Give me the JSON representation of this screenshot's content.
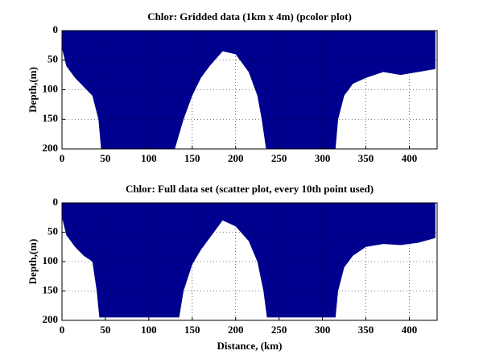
{
  "chart_data": [
    {
      "type": "area",
      "title": "Chlor: Gridded data (1km x 4m) (pcolor plot)",
      "y_label": "Depth,(m)",
      "x": [
        0,
        5,
        15,
        25,
        35,
        42,
        45,
        130,
        140,
        150,
        160,
        170,
        185,
        200,
        215,
        225,
        230,
        235,
        315,
        318,
        325,
        335,
        350,
        370,
        390,
        410,
        430
      ],
      "values": [
        30,
        60,
        80,
        95,
        110,
        150,
        200,
        200,
        150,
        110,
        80,
        60,
        35,
        40,
        70,
        110,
        150,
        200,
        200,
        150,
        110,
        90,
        80,
        70,
        75,
        70,
        65
      ],
      "color": "#00008f",
      "xlim": [
        0,
        432
      ],
      "ylim": [
        0,
        200
      ],
      "y_reversed": true,
      "xticks": [
        0,
        50,
        100,
        150,
        200,
        250,
        300,
        350,
        400
      ],
      "yticks": [
        0,
        50,
        100,
        150,
        200
      ],
      "grid": true
    },
    {
      "type": "area",
      "title": "Chlor: Full data set (scatter plot, every 10th point used)",
      "y_label": "Depth,(m)",
      "x_label": "Distance, (km)",
      "x": [
        0,
        5,
        15,
        25,
        35,
        40,
        43,
        135,
        140,
        150,
        160,
        170,
        185,
        200,
        215,
        225,
        232,
        236,
        315,
        318,
        325,
        335,
        350,
        370,
        390,
        410,
        430
      ],
      "values": [
        25,
        55,
        75,
        90,
        100,
        150,
        195,
        195,
        150,
        105,
        80,
        60,
        30,
        40,
        65,
        100,
        150,
        195,
        195,
        150,
        110,
        90,
        75,
        70,
        72,
        68,
        60
      ],
      "color": "#00008f",
      "xlim": [
        0,
        432
      ],
      "ylim": [
        0,
        200
      ],
      "y_reversed": true,
      "xticks": [
        0,
        50,
        100,
        150,
        200,
        250,
        300,
        350,
        400
      ],
      "yticks": [
        0,
        50,
        100,
        150,
        200
      ],
      "grid": true
    }
  ]
}
